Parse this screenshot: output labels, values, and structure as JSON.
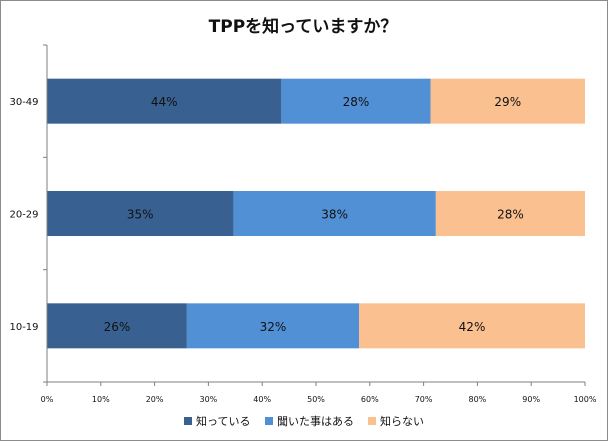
{
  "chart_data": {
    "type": "bar",
    "orientation": "horizontal",
    "stacked": "percent",
    "title": "TPPを知っていますか？",
    "categories": [
      "30-49",
      "20-29",
      "10-19"
    ],
    "series": [
      {
        "name": "知っている",
        "values": [
          44,
          35,
          26
        ],
        "labels": [
          "44%",
          "35%",
          "26%"
        ],
        "color": "#386192"
      },
      {
        "name": "聞いた事はある",
        "values": [
          28,
          38,
          32
        ],
        "labels": [
          "28%",
          "38%",
          "32%"
        ],
        "color": "#5290d6"
      },
      {
        "name": "知らない",
        "values": [
          29,
          28,
          42
        ],
        "labels": [
          "29%",
          "28%",
          "42%"
        ],
        "color": "#fac08f"
      }
    ],
    "xticks": [
      "0%",
      "10%",
      "20%",
      "30%",
      "40%",
      "50%",
      "60%",
      "70%",
      "80%",
      "90%",
      "100%"
    ],
    "xlim": [
      0,
      100
    ],
    "grid": false,
    "legend": "bottom"
  }
}
